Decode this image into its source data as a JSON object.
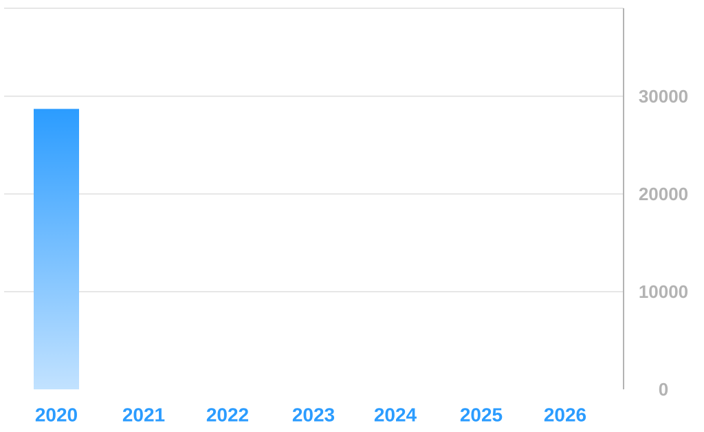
{
  "chart_data": {
    "type": "bar",
    "title": "",
    "xlabel": "",
    "ylabel": "",
    "categories": [
      "2020",
      "2021",
      "2022",
      "2023",
      "2024",
      "2025",
      "2026"
    ],
    "values": [
      28700,
      null,
      null,
      null,
      null,
      null,
      null
    ],
    "ylim": [
      0,
      39000
    ],
    "yticks": [
      0,
      10000,
      20000,
      30000
    ],
    "ytick_labels": [
      "0",
      "10000",
      "20000",
      "30000"
    ],
    "y_axis_position": "right",
    "grid": true,
    "legend": "none",
    "colors": {
      "bar_top": "#2b9cff",
      "bar_bottom": "#c2e2ff",
      "category_label": "#2b9cff",
      "tick_label": "#b3b3b3",
      "gridline": "#e6e6e6",
      "axis_line": "#b3b3b3"
    }
  }
}
